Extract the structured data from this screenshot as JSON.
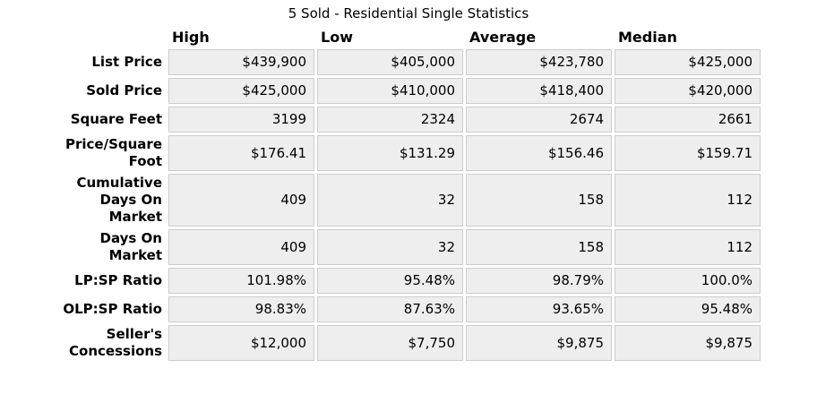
{
  "chart_data": {
    "type": "table",
    "title": "5 Sold - Residential Single Statistics",
    "columns": [
      "High",
      "Low",
      "Average",
      "Median"
    ],
    "rows": [
      {
        "label": "List Price",
        "values": [
          "$439,900",
          "$405,000",
          "$423,780",
          "$425,000"
        ]
      },
      {
        "label": "Sold Price",
        "values": [
          "$425,000",
          "$410,000",
          "$418,400",
          "$420,000"
        ]
      },
      {
        "label": "Square Feet",
        "values": [
          "3199",
          "2324",
          "2674",
          "2661"
        ]
      },
      {
        "label": "Price/Square\nFoot",
        "values": [
          "$176.41",
          "$131.29",
          "$156.46",
          "$159.71"
        ]
      },
      {
        "label": "Cumulative\nDays On\nMarket",
        "values": [
          "409",
          "32",
          "158",
          "112"
        ]
      },
      {
        "label": "Days On\nMarket",
        "values": [
          "409",
          "32",
          "158",
          "112"
        ]
      },
      {
        "label": "LP:SP Ratio",
        "values": [
          "101.98%",
          "95.48%",
          "98.79%",
          "100.0%"
        ]
      },
      {
        "label": "OLP:SP Ratio",
        "values": [
          "98.83%",
          "87.63%",
          "93.65%",
          "95.48%"
        ]
      },
      {
        "label": "Seller's\nConcessions",
        "values": [
          "$12,000",
          "$7,750",
          "$9,875",
          "$9,875"
        ]
      }
    ]
  },
  "colors": {
    "cell_bg": "#eeeeee",
    "cell_border": "#cccccc",
    "text": "#000000",
    "background": "#ffffff"
  }
}
